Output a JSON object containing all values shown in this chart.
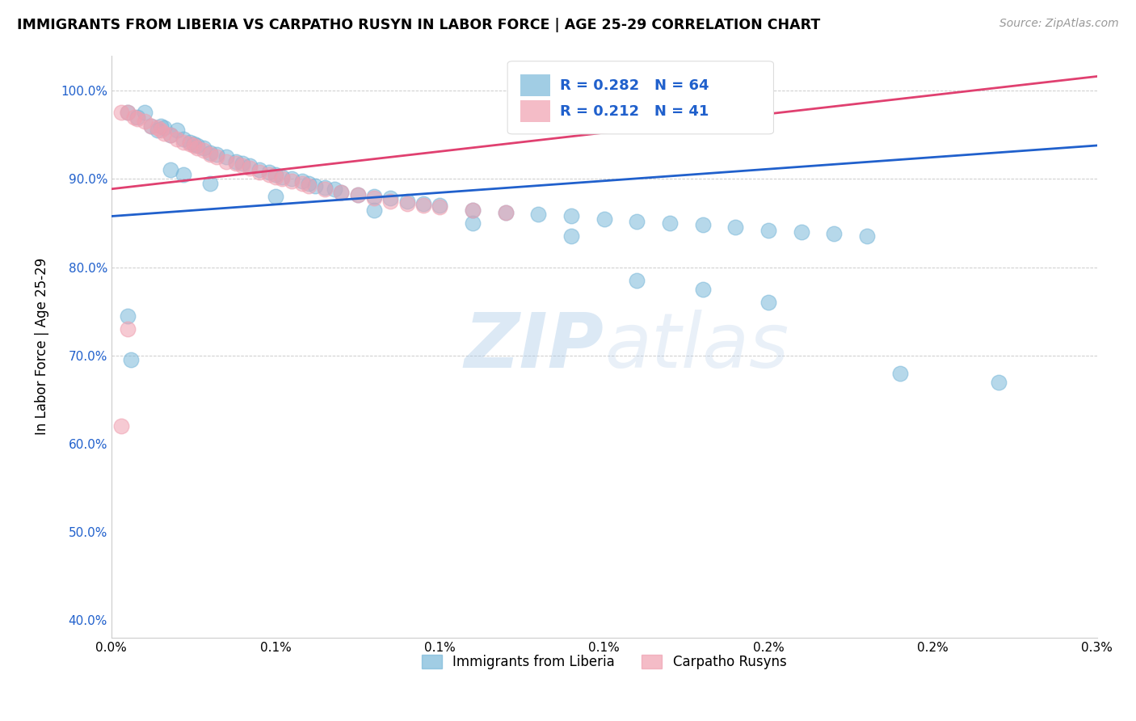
{
  "title": "IMMIGRANTS FROM LIBERIA VS CARPATHO RUSYN IN LABOR FORCE | AGE 25-29 CORRELATION CHART",
  "source": "Source: ZipAtlas.com",
  "ylabel": "In Labor Force | Age 25-29",
  "legend_label1": "Immigrants from Liberia",
  "legend_label2": "Carpatho Rusyns",
  "r1": 0.282,
  "n1": 64,
  "r2": 0.212,
  "n2": 41,
  "color_blue": "#7ab8d9",
  "color_pink": "#f0a0b0",
  "color_blue_line": "#2060cc",
  "color_pink_line": "#e04070",
  "color_blue_text": "#2060cc",
  "xlim_data": [
    0.0,
    0.003
  ],
  "ylim_data": [
    0.38,
    1.04
  ],
  "blue_x": [
    5e-05,
    8e-05,
    0.0001,
    0.00012,
    0.00014,
    0.00015,
    0.00016,
    0.00018,
    0.0002,
    0.00022,
    0.00024,
    0.00025,
    0.00026,
    0.00028,
    0.0003,
    0.00032,
    0.00035,
    0.00038,
    0.0004,
    0.00042,
    0.00045,
    0.00048,
    0.0005,
    0.00052,
    0.00055,
    0.00058,
    0.0006,
    0.00062,
    0.00065,
    0.00068,
    0.0007,
    0.00075,
    0.0008,
    0.00085,
    0.0009,
    0.00095,
    0.001,
    0.0011,
    0.0012,
    0.0013,
    0.0014,
    0.0015,
    0.0016,
    0.0017,
    0.0018,
    0.0019,
    0.002,
    0.0021,
    0.0022,
    0.0023,
    0.00018,
    0.00022,
    0.0003,
    0.0005,
    0.0008,
    0.0011,
    0.0014,
    0.0016,
    0.0018,
    0.002,
    0.0024,
    0.0027,
    5e-05,
    6e-05
  ],
  "blue_y": [
    0.975,
    0.97,
    0.975,
    0.96,
    0.955,
    0.96,
    0.958,
    0.95,
    0.955,
    0.945,
    0.942,
    0.94,
    0.938,
    0.935,
    0.93,
    0.928,
    0.925,
    0.92,
    0.918,
    0.915,
    0.91,
    0.908,
    0.905,
    0.902,
    0.9,
    0.898,
    0.895,
    0.892,
    0.89,
    0.888,
    0.885,
    0.882,
    0.88,
    0.878,
    0.875,
    0.872,
    0.87,
    0.865,
    0.862,
    0.86,
    0.858,
    0.855,
    0.852,
    0.85,
    0.848,
    0.845,
    0.842,
    0.84,
    0.838,
    0.835,
    0.91,
    0.905,
    0.895,
    0.88,
    0.865,
    0.85,
    0.835,
    0.785,
    0.775,
    0.76,
    0.68,
    0.67,
    0.745,
    0.695
  ],
  "pink_x": [
    3e-05,
    5e-05,
    7e-05,
    8e-05,
    0.0001,
    0.00012,
    0.00014,
    0.00015,
    0.00016,
    0.00018,
    0.0002,
    0.00022,
    0.00024,
    0.00025,
    0.00026,
    0.00028,
    0.0003,
    0.00032,
    0.00035,
    0.00038,
    0.0004,
    0.00042,
    0.00045,
    0.00048,
    0.0005,
    0.00052,
    0.00055,
    0.00058,
    0.0006,
    0.00065,
    0.0007,
    0.00075,
    0.0008,
    0.00085,
    0.0009,
    0.00095,
    0.001,
    0.0011,
    0.0012,
    5e-05,
    3e-05
  ],
  "pink_y": [
    0.975,
    0.975,
    0.97,
    0.968,
    0.965,
    0.96,
    0.958,
    0.955,
    0.952,
    0.95,
    0.945,
    0.942,
    0.94,
    0.938,
    0.935,
    0.932,
    0.928,
    0.925,
    0.92,
    0.918,
    0.915,
    0.912,
    0.908,
    0.905,
    0.902,
    0.9,
    0.898,
    0.895,
    0.892,
    0.888,
    0.885,
    0.882,
    0.878,
    0.875,
    0.872,
    0.87,
    0.868,
    0.865,
    0.862,
    0.73,
    0.62
  ]
}
